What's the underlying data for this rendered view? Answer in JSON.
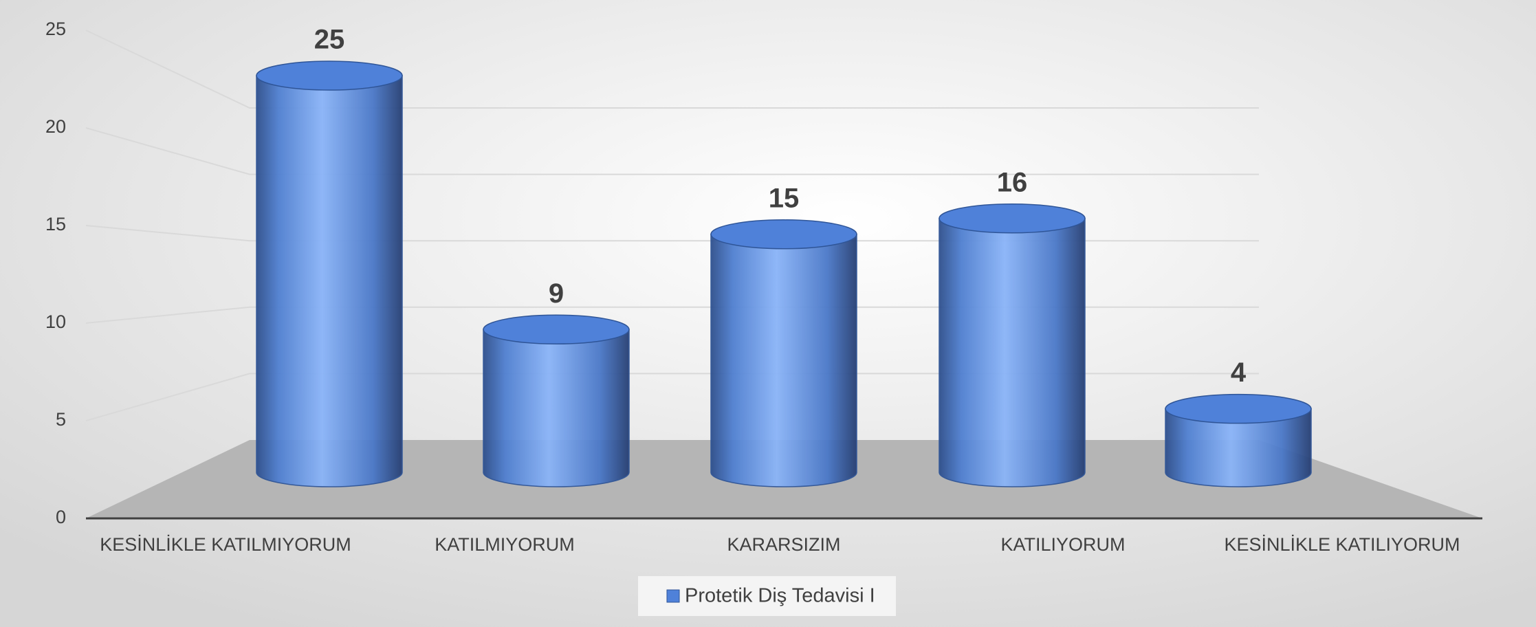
{
  "chart_data": {
    "type": "bar",
    "categories": [
      "KESİNLİKLE KATILMIYORUM",
      "KATILMIYORUM",
      "KARARSIZIM",
      "KATILIYORUM",
      "KESİNLİKLE KATILIYORUM"
    ],
    "series": [
      {
        "name": "Protetik Diş Tedavisi I",
        "color": "#4f81d9",
        "values": [
          25,
          9,
          15,
          16,
          4
        ]
      }
    ],
    "ylim": [
      0,
      25
    ],
    "yticks": [
      0,
      5,
      10,
      15,
      20,
      25
    ],
    "grid": true,
    "legend": "bottom"
  }
}
